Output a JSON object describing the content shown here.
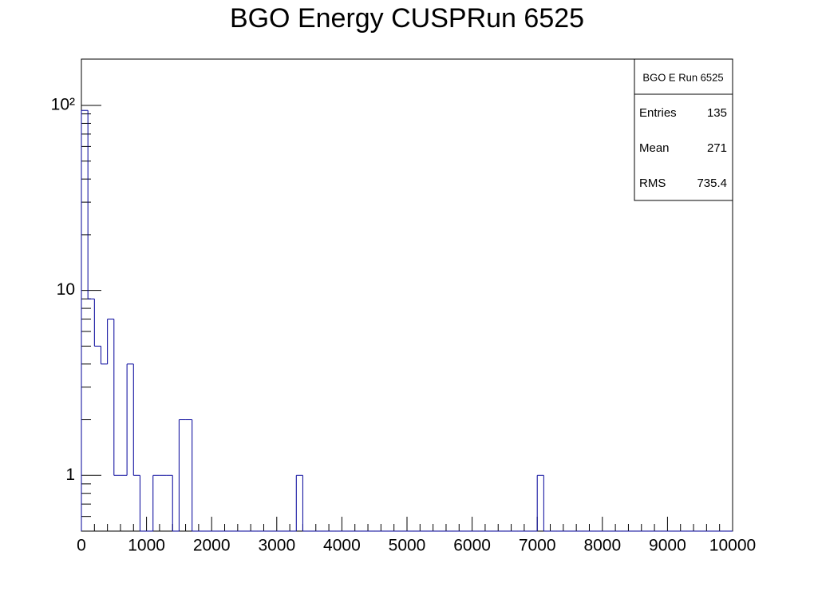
{
  "chart_data": {
    "type": "histogram",
    "title": "BGO Energy CUSPRun 6525",
    "bins": [
      0,
      100,
      200,
      300,
      400,
      500,
      600,
      700,
      800,
      900,
      1000,
      1100,
      1200,
      1300,
      1400,
      1500,
      1600,
      1700,
      1800,
      1900,
      2000,
      2100,
      2200,
      2300,
      2400,
      2500,
      2600,
      2700,
      2800,
      2900,
      3000,
      3100,
      3200,
      3300,
      3400,
      3500,
      3600,
      3700,
      3800,
      3900,
      4000,
      4100,
      4200,
      4300,
      4400,
      4500,
      4600,
      4700,
      4800,
      4900,
      5000,
      5100,
      5200,
      5300,
      5400,
      5500,
      5600,
      5700,
      5800,
      5900,
      6000,
      6100,
      6200,
      6300,
      6400,
      6500,
      6600,
      6700,
      6800,
      6900,
      7000,
      7100,
      7200,
      7300,
      7400,
      7500,
      7600,
      7700,
      7800,
      7900,
      8000,
      8100,
      8200,
      8300,
      8400,
      8500,
      8600,
      8700,
      8800,
      8900,
      9000,
      9100,
      9200,
      9300,
      9400,
      9500,
      9600,
      9700,
      9800,
      9900,
      10000
    ],
    "values": [
      94,
      9,
      5,
      4,
      7,
      1,
      1,
      4,
      1,
      0,
      0,
      1,
      1,
      1,
      0,
      2,
      2,
      0,
      0,
      0,
      0,
      0,
      0,
      0,
      0,
      0,
      0,
      0,
      0,
      0,
      0,
      0,
      0,
      1,
      0,
      0,
      0,
      0,
      0,
      0,
      0,
      0,
      0,
      0,
      0,
      0,
      0,
      0,
      0,
      0,
      0,
      0,
      0,
      0,
      0,
      0,
      0,
      0,
      0,
      0,
      0,
      0,
      0,
      0,
      0,
      0,
      0,
      0,
      0,
      0,
      1,
      0,
      0,
      0,
      0,
      0,
      0,
      0,
      0,
      0,
      0,
      0,
      0,
      0,
      0,
      0,
      0,
      0,
      0,
      0,
      0,
      0,
      0,
      0,
      0,
      0,
      0,
      0,
      0,
      0
    ],
    "color": "#000099",
    "xlim": [
      0,
      10000
    ],
    "xticks": [
      0,
      1000,
      2000,
      3000,
      4000,
      5000,
      6000,
      7000,
      8000,
      9000,
      10000
    ],
    "ylim": [
      0.5,
      178
    ],
    "yticks": [
      1,
      10,
      {
        "value": 100,
        "label": "10²"
      }
    ],
    "log_y": true,
    "stats": {
      "title": "BGO E Run 6525",
      "rows": [
        [
          "Entries",
          "135"
        ],
        [
          "Mean",
          "271"
        ],
        [
          "RMS",
          "735.4"
        ]
      ]
    }
  }
}
